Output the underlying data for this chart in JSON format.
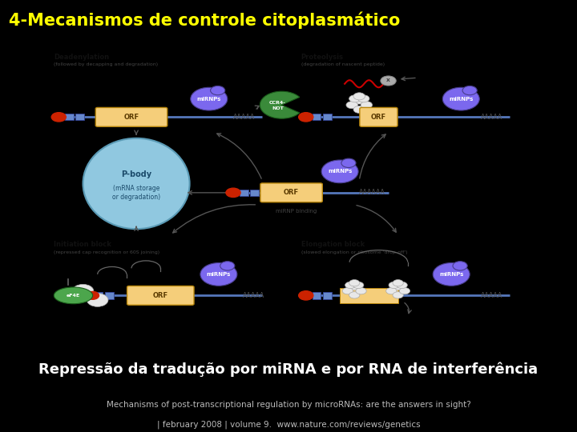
{
  "title": "4-Mecanismos de controle citoplasmático",
  "title_color": "#FFFF00",
  "title_fontsize": 15,
  "bg_color": "#000000",
  "panel_bg": "#FFFFFF",
  "subtitle_text": "Repressão da tradução por miRNA e por RNA de interferência",
  "subtitle_color": "#FFFFFF",
  "subtitle_fontsize": 13,
  "caption_line1": "Mechanisms of post-transcriptional regulation by microRNAs: are the answers in sight?",
  "caption_line2": "| february 2008 | volume 9.  www.nature.com/reviews/genetics",
  "caption_color": "#BBBBBB",
  "caption_fontsize": 7.5,
  "labels": {
    "deadenylation": "Deadenylation",
    "deadenylation_sub": "(followed by decapping and degradation)",
    "proteolysis": "Proteolysis",
    "proteolysis_sub": "(degradation of nascent peptide)",
    "pbody": "P-body",
    "pbody_sub": "(mRNA storage\nor degradation)",
    "mirnp_binding": "miRNP binding",
    "initiation": "Initiation block",
    "initiation_sub": "(repressed cap recognition or 60S joining)",
    "elongation": "Elongation block",
    "elongation_sub": "(slowed elongation or ribosome 'drop-off')"
  },
  "colors": {
    "orf_fill": "#F5CE7A",
    "orf_edge": "#B8860B",
    "mirnp_fill": "#7B68EE",
    "mirnp_edge": "#483D8B",
    "pbody_fill": "#90C8E0",
    "pbody_edge": "#5A9AB5",
    "ccr4_fill": "#3A8A3A",
    "ccr4_edge": "#1A5C1A",
    "eif4e_fill": "#4CA64C",
    "eif4e_edge": "#1A5C1A",
    "cap_fill": "#CC2200",
    "ribosome_fill": "#E8E8E8",
    "ribosome_edge": "#AAAAAA",
    "mrna_color": "#5577BB",
    "utr_fill": "#6688CC",
    "utr_edge": "#334499",
    "poly_a_color": "#555555",
    "arrow_color": "#555555",
    "label_color": "#111111",
    "red_protein": "#CC2200",
    "wavy_color": "#CC0000",
    "x_fill": "#AAAAAA",
    "x_edge": "#888888"
  }
}
